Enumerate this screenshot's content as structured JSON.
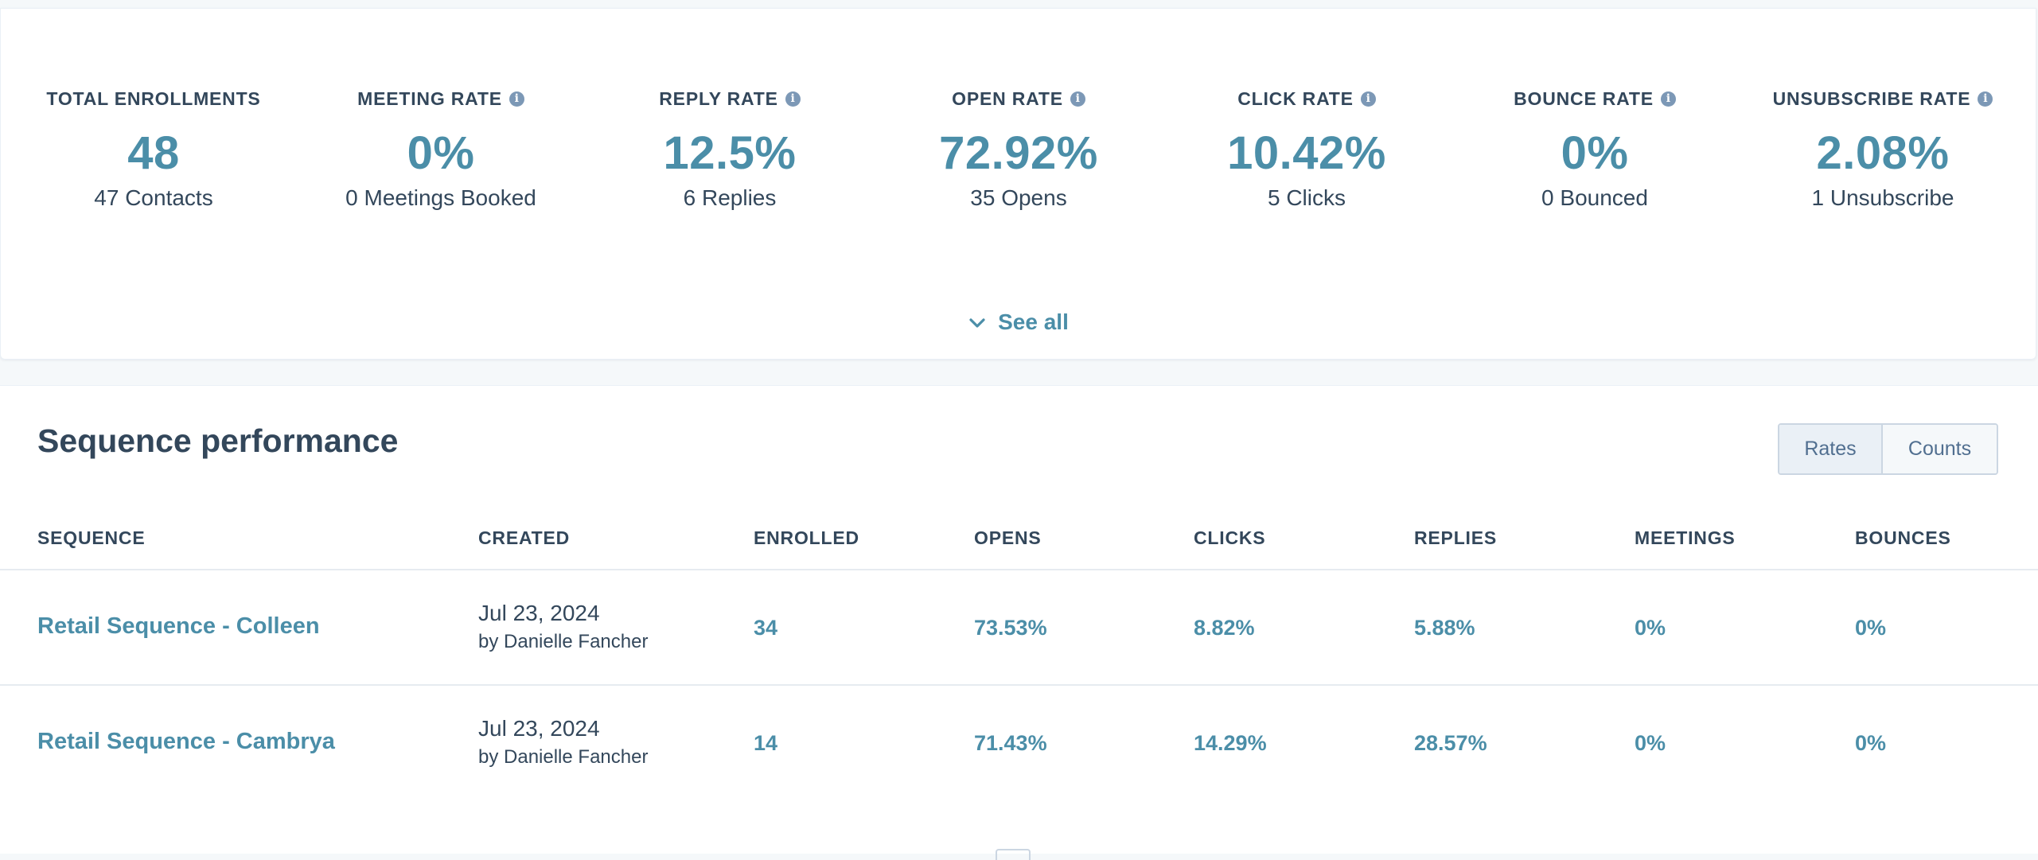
{
  "summary": {
    "metrics": [
      {
        "label": "TOTAL ENROLLMENTS",
        "value": "48",
        "sub": "47 Contacts",
        "info": false
      },
      {
        "label": "MEETING RATE",
        "value": "0%",
        "sub": "0 Meetings Booked",
        "info": true
      },
      {
        "label": "REPLY RATE",
        "value": "12.5%",
        "sub": "6 Replies",
        "info": true
      },
      {
        "label": "OPEN RATE",
        "value": "72.92%",
        "sub": "35 Opens",
        "info": true
      },
      {
        "label": "CLICK RATE",
        "value": "10.42%",
        "sub": "5 Clicks",
        "info": true
      },
      {
        "label": "BOUNCE RATE",
        "value": "0%",
        "sub": "0 Bounced",
        "info": true
      },
      {
        "label": "UNSUBSCRIBE RATE",
        "value": "2.08%",
        "sub": "1 Unsubscribe",
        "info": true
      }
    ],
    "info_glyph": "i",
    "see_all_label": "See all"
  },
  "performance": {
    "title": "Sequence performance",
    "toggle": {
      "rates_label": "Rates",
      "counts_label": "Counts",
      "selected": "Rates"
    },
    "columns": [
      "SEQUENCE",
      "CREATED",
      "ENROLLED",
      "OPENS",
      "CLICKS",
      "REPLIES",
      "MEETINGS",
      "BOUNCES"
    ],
    "rows": [
      {
        "sequence": "Retail Sequence - Colleen",
        "created_date": "Jul 23, 2024",
        "created_by": "by Danielle Fancher",
        "enrolled": "34",
        "opens": "73.53%",
        "clicks": "8.82%",
        "replies": "5.88%",
        "meetings": "0%",
        "bounces": "0%"
      },
      {
        "sequence": "Retail Sequence - Cambrya",
        "created_date": "Jul 23, 2024",
        "created_by": "by Danielle Fancher",
        "enrolled": "14",
        "opens": "71.43%",
        "clicks": "14.29%",
        "replies": "28.57%",
        "meetings": "0%",
        "bounces": "0%"
      }
    ]
  },
  "colors": {
    "accent": "#4b8ea8",
    "text": "#33475b",
    "info_icon": "#7c98b6"
  },
  "icons": {
    "info": "info-icon",
    "see_all": "chevron-down-icon"
  }
}
